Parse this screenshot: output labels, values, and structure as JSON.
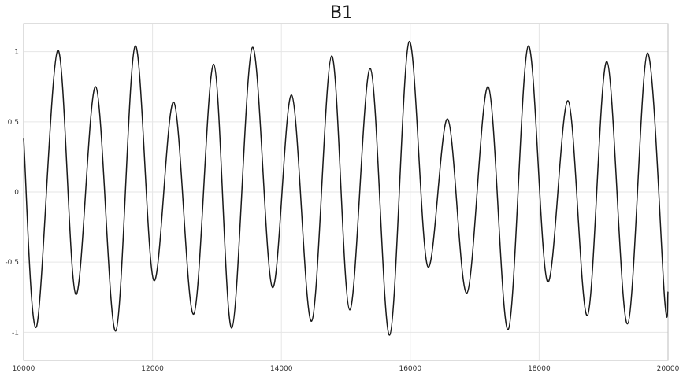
{
  "chart_data": {
    "type": "line",
    "title": "B1",
    "xlabel": "",
    "ylabel": "",
    "xlim": [
      10000,
      20000
    ],
    "ylim": [
      -1.2,
      1.2
    ],
    "x_ticks": [
      10000,
      12000,
      14000,
      16000,
      18000,
      20000
    ],
    "x_tick_labels": [
      "10000",
      "12000",
      "14000",
      "16000",
      "18000",
      "20000"
    ],
    "y_ticks": [
      1,
      0.5,
      0,
      -0.5,
      -1
    ],
    "y_tick_labels": [
      "1",
      "0.5",
      "0",
      "-0.5",
      "-1"
    ],
    "grid": true,
    "series": [
      {
        "color": "#1a1a1a",
        "points": [
          [
            10000,
            0.38
          ],
          [
            10200,
            -0.96
          ],
          [
            10530,
            1.01
          ],
          [
            10810,
            -0.73
          ],
          [
            11120,
            0.75
          ],
          [
            11430,
            -0.99
          ],
          [
            11730,
            1.04
          ],
          [
            12020,
            -0.63
          ],
          [
            12330,
            0.64
          ],
          [
            12640,
            -0.87
          ],
          [
            12950,
            0.91
          ],
          [
            13230,
            -0.97
          ],
          [
            13550,
            1.03
          ],
          [
            13860,
            -0.68
          ],
          [
            14160,
            0.69
          ],
          [
            14470,
            -0.92
          ],
          [
            14780,
            0.97
          ],
          [
            15060,
            -0.84
          ],
          [
            15380,
            0.88
          ],
          [
            15680,
            -1.02
          ],
          [
            15980,
            1.07
          ],
          [
            16270,
            -0.53
          ],
          [
            16580,
            0.52
          ],
          [
            16880,
            -0.72
          ],
          [
            17210,
            0.75
          ],
          [
            17520,
            -0.98
          ],
          [
            17830,
            1.04
          ],
          [
            18130,
            -0.64
          ],
          [
            18450,
            0.65
          ],
          [
            18750,
            -0.88
          ],
          [
            19050,
            0.93
          ],
          [
            19370,
            -0.94
          ],
          [
            19680,
            0.99
          ],
          [
            19950,
            -0.78
          ],
          [
            20000,
            -0.71
          ]
        ]
      }
    ]
  }
}
